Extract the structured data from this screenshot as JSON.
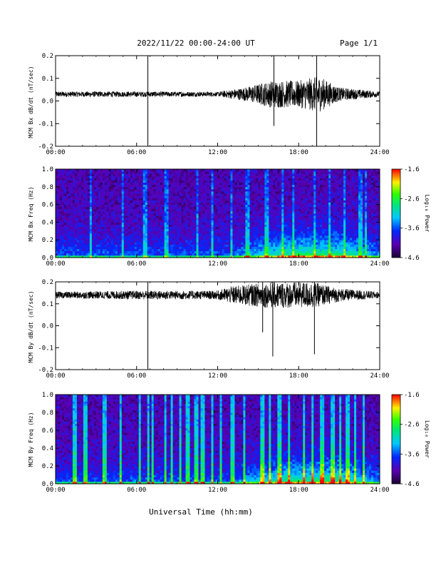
{
  "header": {
    "title": "2022/11/22  00:00-24:00 UT",
    "page": "Page 1/1"
  },
  "xaxis_title": "Universal Time (hh:mm)",
  "colorbar": {
    "label": "Log₁₀ Power",
    "ticks": [
      "-1.6",
      "-2.6",
      "-3.6",
      "-4.6"
    ]
  },
  "chart_data": [
    {
      "type": "line",
      "ylabel": "MCM Bx dB/dt (nT/sec)",
      "xlim": [
        "00:00",
        "24:00"
      ],
      "ylim": [
        -0.2,
        0.2
      ],
      "x_ticks": [
        "00:00",
        "06:00",
        "12:00",
        "18:00",
        "24:00"
      ],
      "y_ticks": [
        "0.2",
        "0.1",
        "0.0",
        "-0.1",
        "-0.2"
      ],
      "baseline": 0.03,
      "noise_envelope": [
        {
          "t": "00:00",
          "amp": 0.012
        },
        {
          "t": "06:00",
          "amp": 0.012
        },
        {
          "t": "12:00",
          "amp": 0.01
        },
        {
          "t": "14:00",
          "amp": 0.03
        },
        {
          "t": "16:00",
          "amp": 0.06
        },
        {
          "t": "18:00",
          "amp": 0.06
        },
        {
          "t": "19:30",
          "amp": 0.08
        },
        {
          "t": "21:00",
          "amp": 0.03
        },
        {
          "t": "24:00",
          "amp": 0.012
        }
      ],
      "spikes": [
        {
          "t": "06:50",
          "min": -0.2,
          "max": 0.2
        },
        {
          "t": "16:10",
          "min": -0.11,
          "max": 0.2
        },
        {
          "t": "19:20",
          "min": -0.2,
          "max": 0.2
        }
      ]
    },
    {
      "type": "heatmap",
      "ylabel": "MCM Bx Freq (Hz)",
      "xlim": [
        "00:00",
        "24:00"
      ],
      "ylim": [
        0.0,
        1.0
      ],
      "x_ticks": [
        "00:00",
        "06:00",
        "12:00",
        "18:00",
        "24:00"
      ],
      "y_ticks": [
        "1.0",
        "0.8",
        "0.6",
        "0.4",
        "0.2",
        "0.0"
      ],
      "zlim": [
        -4.6,
        -1.6
      ],
      "zlabel": "Log₁₀ Power",
      "z_ticks": [
        "-1.6",
        "-2.6",
        "-3.6",
        "-4.6"
      ],
      "activity_bursts_hours": [
        2.6,
        5.0,
        6.6,
        8.2,
        10.5,
        11.6,
        13.0,
        14.2,
        15.6,
        16.8,
        17.6,
        19.2,
        20.3,
        21.4,
        22.6,
        23.0
      ]
    },
    {
      "type": "line",
      "ylabel": "MCM By dB/dt (nT/sec)",
      "xlim": [
        "00:00",
        "24:00"
      ],
      "ylim": [
        -0.2,
        0.2
      ],
      "x_ticks": [
        "00:00",
        "06:00",
        "12:00",
        "18:00",
        "24:00"
      ],
      "y_ticks": [
        "0.2",
        "0.1",
        "0.0",
        "-0.1",
        "-0.2"
      ],
      "baseline": 0.14,
      "noise_envelope": [
        {
          "t": "00:00",
          "amp": 0.015
        },
        {
          "t": "06:00",
          "amp": 0.02
        },
        {
          "t": "12:00",
          "amp": 0.02
        },
        {
          "t": "13:00",
          "amp": 0.04
        },
        {
          "t": "16:00",
          "amp": 0.06
        },
        {
          "t": "19:00",
          "amp": 0.06
        },
        {
          "t": "21:00",
          "amp": 0.03
        },
        {
          "t": "24:00",
          "amp": 0.015
        }
      ],
      "spikes": [
        {
          "t": "06:50",
          "min": -0.2,
          "max": 0.2
        },
        {
          "t": "16:05",
          "min": -0.14,
          "max": 0.2
        },
        {
          "t": "19:10",
          "min": -0.13,
          "max": 0.2
        },
        {
          "t": "15:20",
          "min": -0.03,
          "max": 0.2
        }
      ]
    },
    {
      "type": "heatmap",
      "ylabel": "MCM By Freq (Hz)",
      "xlim": [
        "00:00",
        "24:00"
      ],
      "ylim": [
        0.0,
        1.0
      ],
      "x_ticks": [
        "00:00",
        "06:00",
        "12:00",
        "18:00",
        "24:00"
      ],
      "y_ticks": [
        "1.0",
        "0.8",
        "0.6",
        "0.4",
        "0.2",
        "0.0"
      ],
      "zlim": [
        -4.6,
        -1.6
      ],
      "zlabel": "Log₁₀ Power",
      "z_ticks": [
        "-1.6",
        "-2.6",
        "-3.6",
        "-4.6"
      ],
      "activity_bursts_hours": [
        1.4,
        2.2,
        3.6,
        4.8,
        6.2,
        6.9,
        7.2,
        8.1,
        8.6,
        9.2,
        9.8,
        10.4,
        10.9,
        11.6,
        12.2,
        13.1,
        14.0,
        15.3,
        15.9,
        16.6,
        17.3,
        18.4,
        19.0,
        19.7,
        20.5,
        21.1,
        21.6,
        22.2,
        22.8
      ]
    }
  ]
}
